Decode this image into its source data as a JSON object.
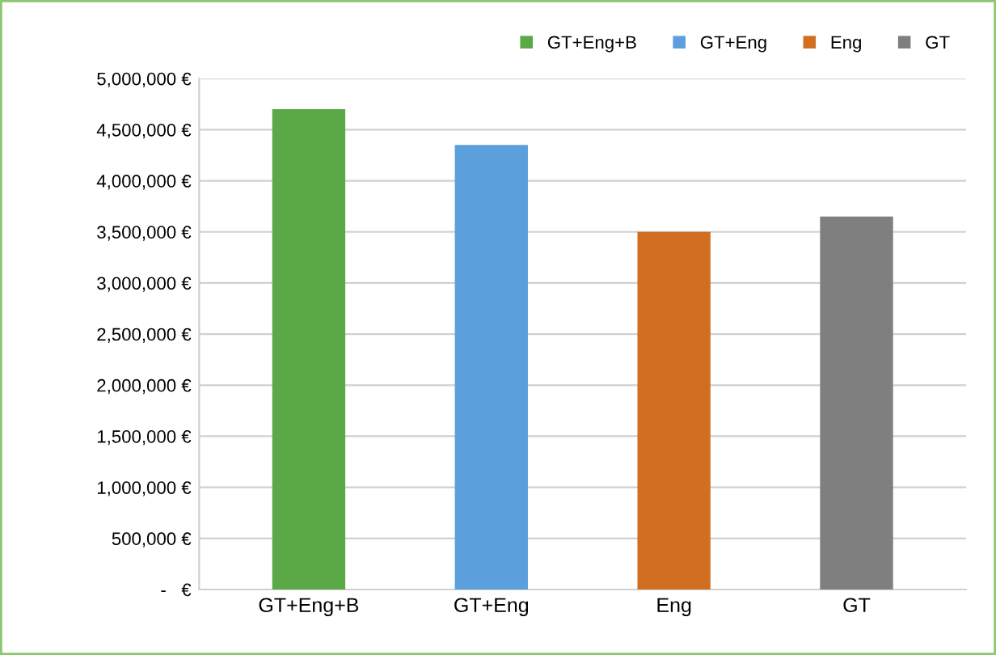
{
  "chart_data": {
    "type": "bar",
    "categories": [
      "GT+Eng+B",
      "GT+Eng",
      "Eng",
      "GT"
    ],
    "series": [
      {
        "name": "GT+Eng+B",
        "color": "#5aa846",
        "values": [
          4700000,
          null,
          null,
          null
        ]
      },
      {
        "name": "GT+Eng",
        "color": "#5b9fdc",
        "values": [
          null,
          4350000,
          null,
          null
        ]
      },
      {
        "name": "Eng",
        "color": "#d26e22",
        "values": [
          null,
          null,
          3500000,
          null
        ]
      },
      {
        "name": "GT",
        "color": "#7f7f7f",
        "values": [
          null,
          null,
          null,
          3650000
        ]
      }
    ],
    "ylim": [
      0,
      5000000
    ],
    "yticks": [
      {
        "value": 0,
        "label": "-   €"
      },
      {
        "value": 500000,
        "label": "500,000 €"
      },
      {
        "value": 1000000,
        "label": "1,000,000 €"
      },
      {
        "value": 1500000,
        "label": "1,500,000 €"
      },
      {
        "value": 2000000,
        "label": "2,000,000 €"
      },
      {
        "value": 2500000,
        "label": "2,500,000 €"
      },
      {
        "value": 3000000,
        "label": "3,000,000 €"
      },
      {
        "value": 3500000,
        "label": "3,500,000 €"
      },
      {
        "value": 4000000,
        "label": "4,000,000 €"
      },
      {
        "value": 4500000,
        "label": "4,500,000 €"
      },
      {
        "value": 5000000,
        "label": "5,000,000 €"
      }
    ],
    "grid": "y",
    "legend": "top"
  }
}
